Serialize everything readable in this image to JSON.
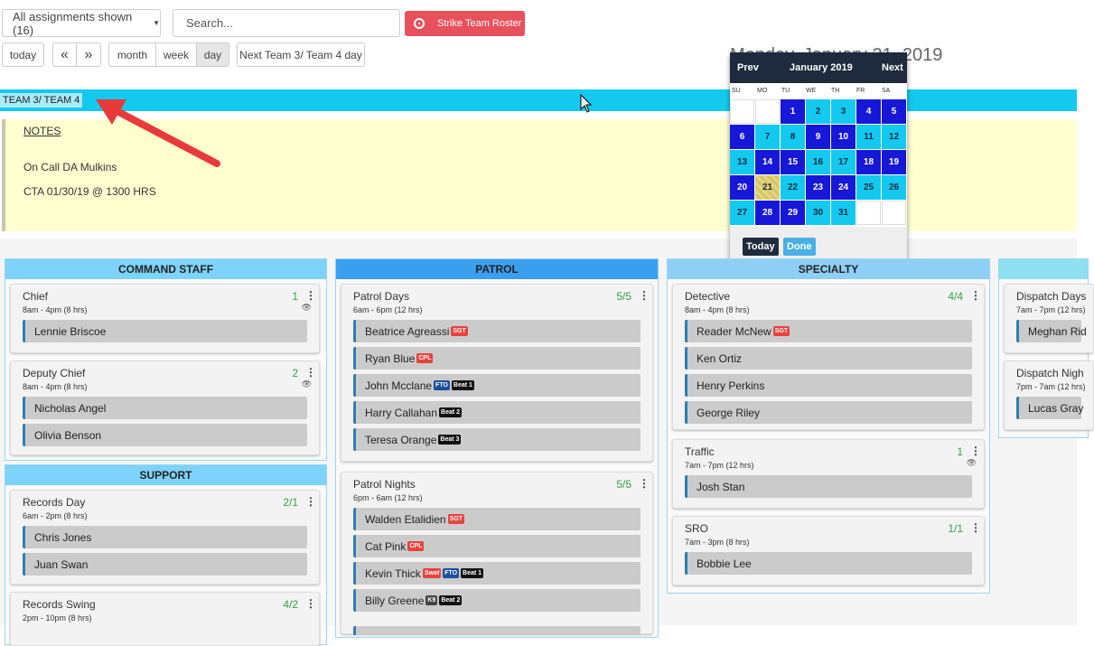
{
  "toolbar": {
    "filter_label": "All assignments shown (16)",
    "search_placeholder": "Search...",
    "strike_label": "Strike Team Roster",
    "today": "today",
    "prev": "«",
    "next": "»",
    "views": [
      "month",
      "week",
      "day"
    ],
    "active_view": "day",
    "next_team": "Next Team 3/ Team 4 day"
  },
  "title": "Monday, January 21, 2019",
  "team_label": "TEAM 3/ TEAM 4",
  "notes": {
    "heading": "NOTES",
    "lines": [
      "On Call DA Mulkins",
      "CTA 01/30/19 @ 1300 HRS"
    ]
  },
  "datepicker": {
    "prev": "Prev",
    "month": "January 2019",
    "next": "Next",
    "weekdays": [
      "SU",
      "MO",
      "TU",
      "WE",
      "TH",
      "FR",
      "SA"
    ],
    "today_label": "Today",
    "done_label": "Done",
    "selected": 21,
    "colors": {
      "dark": "#1717d8",
      "light": "#13c9f0",
      "selected": "#e6d47a"
    },
    "cells": [
      [
        null,
        null,
        {
          "d": 1,
          "c": "dark"
        },
        {
          "d": 2,
          "c": "light"
        },
        {
          "d": 3,
          "c": "light"
        },
        {
          "d": 4,
          "c": "dark"
        },
        {
          "d": 5,
          "c": "dark"
        }
      ],
      [
        {
          "d": 6,
          "c": "dark"
        },
        {
          "d": 7,
          "c": "light"
        },
        {
          "d": 8,
          "c": "light"
        },
        {
          "d": 9,
          "c": "dark"
        },
        {
          "d": 10,
          "c": "dark"
        },
        {
          "d": 11,
          "c": "light"
        },
        {
          "d": 12,
          "c": "light"
        }
      ],
      [
        {
          "d": 13,
          "c": "light"
        },
        {
          "d": 14,
          "c": "dark"
        },
        {
          "d": 15,
          "c": "dark"
        },
        {
          "d": 16,
          "c": "light"
        },
        {
          "d": 17,
          "c": "light"
        },
        {
          "d": 18,
          "c": "dark"
        },
        {
          "d": 19,
          "c": "dark"
        }
      ],
      [
        {
          "d": 20,
          "c": "dark"
        },
        {
          "d": 21,
          "c": "selected"
        },
        {
          "d": 22,
          "c": "light"
        },
        {
          "d": 23,
          "c": "dark"
        },
        {
          "d": 24,
          "c": "dark"
        },
        {
          "d": 25,
          "c": "light"
        },
        {
          "d": 26,
          "c": "light"
        }
      ],
      [
        {
          "d": 27,
          "c": "light"
        },
        {
          "d": 28,
          "c": "dark"
        },
        {
          "d": 29,
          "c": "dark"
        },
        {
          "d": 30,
          "c": "light"
        },
        {
          "d": 31,
          "c": "light"
        },
        null,
        null
      ]
    ]
  },
  "badges": {
    "SGT": {
      "text": "SGT",
      "color": "#e8433d"
    },
    "CPL": {
      "text": "CPL",
      "color": "#e8433d"
    },
    "FTO": {
      "text": "FTO",
      "color": "#1a4fa0"
    },
    "Swat": {
      "text": "Swat",
      "color": "#e8433d"
    },
    "K9": {
      "text": "K9",
      "color": "#444"
    },
    "Beat 1": {
      "text": "Beat 1",
      "color": "#111"
    },
    "Beat 2": {
      "text": "Beat 2",
      "color": "#111"
    },
    "Beat 3": {
      "text": "Beat 3",
      "color": "#111"
    }
  },
  "columns": [
    {
      "title": "COMMAND STAFF",
      "color": "#7dd3f9",
      "cards": [
        {
          "title": "Chief",
          "hours": "8am - 4pm (8 hrs)",
          "count": "1",
          "eye": true,
          "people": [
            {
              "name": "Lennie Briscoe",
              "badges": []
            }
          ]
        },
        {
          "title": "Deputy Chief",
          "hours": "8am - 4pm (8 hrs)",
          "count": "2",
          "eye": true,
          "people": [
            {
              "name": "Nicholas Angel",
              "badges": []
            },
            {
              "name": "Olivia Benson",
              "badges": []
            }
          ]
        }
      ]
    },
    {
      "title": "SUPPORT",
      "color": "#7dd3f9",
      "cards": [
        {
          "title": "Records Day",
          "hours": "6am - 2pm (8 hrs)",
          "count": "2/1",
          "eye": false,
          "people": [
            {
              "name": "Chris Jones",
              "badges": []
            },
            {
              "name": "Juan Swan",
              "badges": []
            }
          ]
        },
        {
          "title": "Records Swing",
          "hours": "2pm - 10pm (8 hrs)",
          "count": "4/2",
          "eye": false,
          "people": []
        }
      ]
    },
    {
      "title": "PATROL",
      "color": "#3b9ff0",
      "cards": [
        {
          "title": "Patrol Days",
          "hours": "6am - 6pm (12 hrs)",
          "count": "5/5",
          "eye": false,
          "people": [
            {
              "name": "Beatrice Agreassi",
              "badges": [
                "SGT"
              ]
            },
            {
              "name": "Ryan Blue",
              "badges": [
                "CPL"
              ]
            },
            {
              "name": "John Mcclane",
              "badges": [
                "FTO",
                "Beat 1"
              ]
            },
            {
              "name": "Harry Callahan",
              "badges": [
                "Beat 2"
              ]
            },
            {
              "name": "Teresa Orange",
              "badges": [
                "Beat 3"
              ]
            }
          ]
        },
        {
          "title": "Patrol Nights",
          "hours": "6pm - 6am (12 hrs)",
          "count": "5/5",
          "eye": false,
          "people": [
            {
              "name": "Walden Etalidien",
              "badges": [
                "SGT"
              ]
            },
            {
              "name": "Cat Pink",
              "badges": [
                "CPL"
              ]
            },
            {
              "name": "Kevin Thick",
              "badges": [
                "Swat",
                "FTO",
                "Beat 1"
              ]
            },
            {
              "name": "Billy Greene",
              "badges": [
                "K9",
                "Beat 2"
              ]
            },
            {
              "name": "",
              "badges": []
            }
          ]
        }
      ]
    },
    {
      "title": "SPECIALTY",
      "color": "#8ecff5",
      "cards": [
        {
          "title": "Detective",
          "hours": "8am - 4pm (8 hrs)",
          "count": "4/4",
          "eye": false,
          "people": [
            {
              "name": "Reader McNew",
              "badges": [
                "SGT"
              ]
            },
            {
              "name": "Ken Ortiz",
              "badges": []
            },
            {
              "name": "Henry Perkins",
              "badges": []
            },
            {
              "name": "George Riley",
              "badges": []
            }
          ]
        },
        {
          "title": "Traffic",
          "hours": "7am - 7pm (12 hrs)",
          "count": "1",
          "eye": true,
          "people": [
            {
              "name": "Josh Stan",
              "badges": []
            }
          ]
        },
        {
          "title": "SRO",
          "hours": "7am - 3pm (8 hrs)",
          "count": "1/1",
          "eye": false,
          "people": [
            {
              "name": "Bobbie Lee",
              "badges": []
            }
          ]
        }
      ]
    },
    {
      "title": "",
      "color": "#8fe0f0",
      "cards": [
        {
          "title": "Dispatch Days",
          "hours": "7am - 7pm (12 hrs)",
          "count": "",
          "eye": false,
          "people": [
            {
              "name": "Meghan Rid",
              "badges": []
            }
          ]
        },
        {
          "title": "Dispatch Nigh",
          "hours": "7pm - 7am (12 hrs)",
          "count": "",
          "eye": false,
          "people": [
            {
              "name": "Lucas Gray",
              "badges": []
            }
          ]
        }
      ]
    }
  ]
}
